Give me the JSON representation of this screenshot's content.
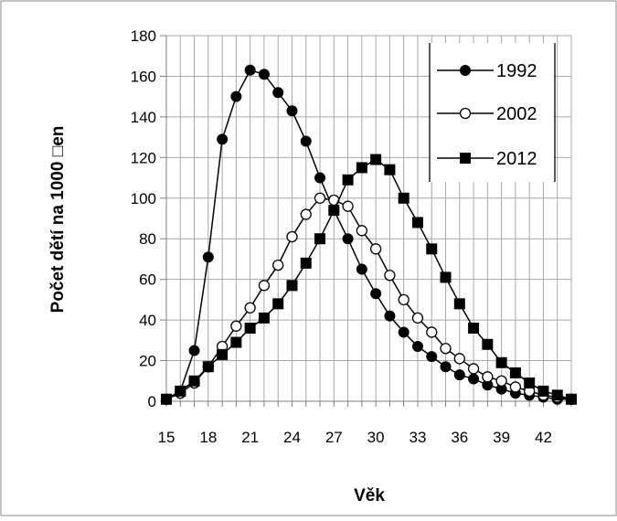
{
  "chart_data": {
    "type": "line",
    "title": "",
    "xlabel": "Věk",
    "ylabel": "Počet dětí na 1000 □en",
    "xlim": [
      15,
      44
    ],
    "ylim": [
      0,
      180
    ],
    "x_ticks": [
      15,
      18,
      21,
      24,
      27,
      30,
      33,
      36,
      39,
      42
    ],
    "y_ticks": [
      0,
      20,
      40,
      60,
      80,
      100,
      120,
      140,
      160,
      180
    ],
    "grid": true,
    "legend_position": "top-right",
    "series": [
      {
        "name": "1992",
        "marker": "filled-circle",
        "x": [
          15,
          16,
          17,
          18,
          19,
          20,
          21,
          22,
          23,
          24,
          25,
          26,
          27,
          28,
          29,
          30,
          31,
          32,
          33,
          34,
          35,
          36,
          37,
          38,
          39,
          40,
          41,
          42,
          43,
          44
        ],
        "values": [
          1,
          5,
          25,
          71,
          129,
          150,
          163,
          161,
          152,
          143,
          128,
          110,
          94,
          80,
          65,
          53,
          42,
          34,
          27,
          22,
          17,
          13,
          11,
          8,
          6,
          4,
          3,
          2,
          1,
          1
        ]
      },
      {
        "name": "2002",
        "marker": "open-circle",
        "x": [
          15,
          16,
          17,
          18,
          19,
          20,
          21,
          22,
          23,
          24,
          25,
          26,
          27,
          28,
          29,
          30,
          31,
          32,
          33,
          34,
          35,
          36,
          37,
          38,
          39,
          40,
          41,
          42,
          43,
          44
        ],
        "values": [
          1,
          4,
          9,
          17,
          27,
          37,
          46,
          57,
          67,
          81,
          92,
          100,
          99,
          96,
          84,
          75,
          62,
          50,
          41,
          34,
          26,
          21,
          16,
          12,
          10,
          7,
          5,
          3,
          2,
          1
        ]
      },
      {
        "name": "2012",
        "marker": "filled-square",
        "x": [
          15,
          16,
          17,
          18,
          19,
          20,
          21,
          22,
          23,
          24,
          25,
          26,
          27,
          28,
          29,
          30,
          31,
          32,
          33,
          34,
          35,
          36,
          37,
          38,
          39,
          40,
          41,
          42,
          43,
          44
        ],
        "values": [
          1,
          5,
          10,
          17,
          23,
          29,
          36,
          41,
          48,
          57,
          68,
          80,
          94,
          109,
          115,
          119,
          114,
          100,
          88,
          75,
          61,
          48,
          36,
          28,
          19,
          14,
          9,
          5,
          3,
          1
        ]
      }
    ]
  }
}
